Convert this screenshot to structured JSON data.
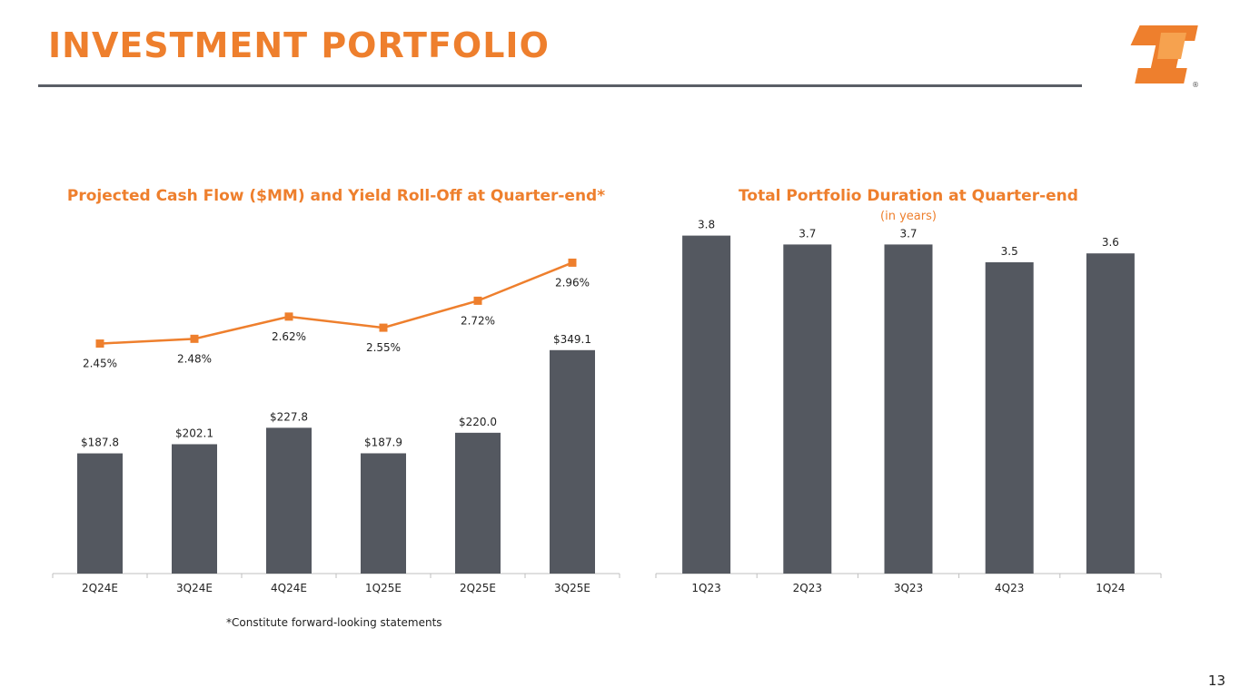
{
  "header": {
    "title": "INVESTMENT PORTFOLIO",
    "logo_name": "company-logo",
    "registered_mark": "®"
  },
  "colors": {
    "accent": "#ee7f2d",
    "bar": "#545860",
    "axis": "#bfbfbf",
    "text": "#222222"
  },
  "chart_data": [
    {
      "type": "bar",
      "title": "Projected Cash Flow ($MM) and Yield Roll-Off at Quarter-end*",
      "categories": [
        "2Q24E",
        "3Q24E",
        "4Q24E",
        "1Q25E",
        "2Q25E",
        "3Q25E"
      ],
      "series": [
        {
          "name": "Projected Cash Flow ($MM)",
          "kind": "bar",
          "values": [
            187.8,
            202.1,
            227.8,
            187.9,
            220.0,
            349.1
          ],
          "labels": [
            "$187.8",
            "$202.1",
            "$227.8",
            "$187.9",
            "$220.0",
            "$349.1"
          ]
        },
        {
          "name": "Yield Roll-Off",
          "kind": "line",
          "values": [
            2.45,
            2.48,
            2.62,
            2.55,
            2.72,
            2.96
          ],
          "labels": [
            "2.45%",
            "2.48%",
            "2.62%",
            "2.55%",
            "2.72%",
            "2.96%"
          ]
        }
      ],
      "ylim": [
        0,
        570
      ],
      "y2lim": [
        1.0,
        3.3
      ],
      "xlabel": "",
      "ylabel": ""
    },
    {
      "type": "bar",
      "title": "Total Portfolio Duration at Quarter-end",
      "subtitle": "(in years)",
      "categories": [
        "1Q23",
        "2Q23",
        "3Q23",
        "4Q23",
        "1Q24"
      ],
      "values": [
        3.8,
        3.7,
        3.7,
        3.5,
        3.6
      ],
      "labels": [
        "3.8",
        "3.7",
        "3.7",
        "3.5",
        "3.6"
      ],
      "ylim": [
        0,
        4.0
      ],
      "xlabel": "",
      "ylabel": ""
    }
  ],
  "footnote": "*Constitute forward-looking statements",
  "page_number": "13"
}
